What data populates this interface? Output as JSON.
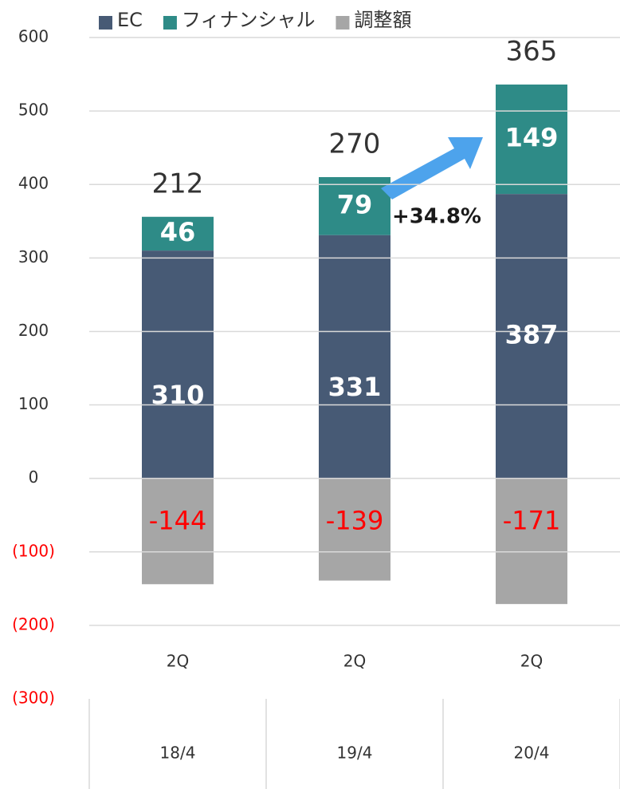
{
  "chart_data": {
    "type": "stacked_bar",
    "categories": [
      "2Q",
      "2Q",
      "2Q"
    ],
    "category_groups": [
      "18/4",
      "19/4",
      "20/4"
    ],
    "series": [
      {
        "name": "EC",
        "color": "#475a75",
        "label_color": "#ffffff",
        "values": [
          310,
          331,
          387
        ]
      },
      {
        "name": "フィナンシャル",
        "color": "#2e8b87",
        "label_color": "#ffffff",
        "values": [
          46,
          79,
          149
        ]
      },
      {
        "name": "調整額",
        "color": "#a6a6a6",
        "label_color": "#ff0000",
        "values": [
          -144,
          -139,
          -171
        ]
      }
    ],
    "totals": [
      212,
      270,
      365
    ],
    "annotation": "+34.8%",
    "ylim": [
      -300,
      600
    ],
    "yticks": [
      600,
      500,
      400,
      300,
      200,
      100,
      0,
      {
        "value": -100,
        "label": "(100)"
      },
      {
        "value": -200,
        "label": "(200)"
      },
      {
        "value": -300,
        "label": "(300)"
      }
    ],
    "negative_tick_color": "#ff0000",
    "grid": true,
    "legend": "top"
  }
}
